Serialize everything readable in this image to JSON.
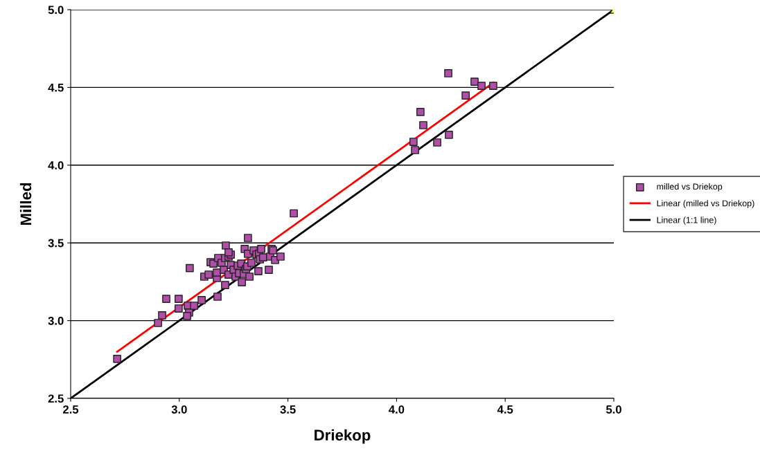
{
  "chart_data": {
    "type": "scatter",
    "xlabel": "Driekop",
    "ylabel": "Milled",
    "xlim": [
      2.5,
      5.0
    ],
    "ylim": [
      2.5,
      5.0
    ],
    "xticks": [
      {
        "value": 2.5,
        "label": "2.5"
      },
      {
        "value": 3.0,
        "label": "3.0"
      },
      {
        "value": 3.5,
        "label": "3.5"
      },
      {
        "value": 4.0,
        "label": "4.0"
      },
      {
        "value": 4.5,
        "label": "4.5"
      },
      {
        "value": 5.0,
        "label": "5.0"
      }
    ],
    "yticks": [
      {
        "value": 2.5,
        "label": "2.5"
      },
      {
        "value": 3.0,
        "label": "3.0"
      },
      {
        "value": 3.5,
        "label": "3.5"
      },
      {
        "value": 4.0,
        "label": "4.0"
      },
      {
        "value": 4.5,
        "label": "4.5"
      },
      {
        "value": 5.0,
        "label": "5.0"
      }
    ],
    "grid": "y",
    "legend": "right",
    "series": [
      {
        "name": "milled vs Driekop",
        "marker": "square",
        "color": "#b04fa8",
        "x": [
          2.714,
          2.902,
          2.921,
          2.94,
          2.997,
          2.997,
          3.039,
          3.045,
          3.036,
          3.068,
          3.103,
          3.048,
          3.115,
          3.135,
          3.144,
          3.157,
          3.173,
          3.176,
          3.173,
          3.179,
          3.195,
          3.214,
          3.211,
          3.227,
          3.237,
          3.205,
          3.211,
          3.227,
          3.237,
          3.227,
          3.25,
          3.259,
          3.269,
          3.275,
          3.285,
          3.288,
          3.297,
          3.301,
          3.307,
          3.313,
          3.316,
          3.316,
          3.323,
          3.332,
          3.342,
          3.355,
          3.367,
          3.364,
          3.371,
          3.377,
          3.386,
          3.412,
          3.418,
          3.425,
          3.441,
          3.431,
          3.466,
          3.527,
          4.238,
          4.359,
          4.391,
          4.445,
          4.318,
          4.11,
          4.123,
          4.078,
          4.085,
          4.187,
          4.241
        ],
        "values": [
          2.754,
          2.985,
          3.034,
          3.14,
          3.14,
          3.078,
          3.096,
          3.052,
          3.03,
          3.096,
          3.132,
          3.338,
          3.283,
          3.296,
          3.376,
          3.367,
          3.274,
          3.154,
          3.309,
          3.403,
          3.372,
          3.483,
          3.403,
          3.412,
          3.425,
          3.327,
          3.229,
          3.296,
          3.358,
          3.439,
          3.327,
          3.283,
          3.354,
          3.305,
          3.367,
          3.247,
          3.301,
          3.461,
          3.332,
          3.349,
          3.532,
          3.43,
          3.283,
          3.372,
          3.452,
          3.425,
          3.43,
          3.318,
          3.394,
          3.461,
          3.407,
          3.327,
          3.412,
          3.461,
          3.39,
          3.452,
          3.412,
          3.69,
          4.591,
          4.537,
          4.51,
          4.51,
          4.448,
          4.342,
          4.257,
          4.15,
          4.097,
          4.146,
          4.195
        ]
      },
      {
        "name": "Linear (milled vs Driekop)",
        "type": "line",
        "color": "#ff0000",
        "x": [
          2.714,
          4.445
        ],
        "values": [
          2.8,
          4.53
        ]
      },
      {
        "name": "Linear (1:1 line)",
        "type": "line",
        "color": "#000000",
        "x": [
          2.5,
          5.0
        ],
        "values": [
          2.5,
          5.0
        ]
      },
      {
        "type": "scatter",
        "marker": "triangle",
        "color": "#ffff00",
        "x": [
          5.0
        ],
        "values": [
          5.0
        ]
      }
    ]
  }
}
